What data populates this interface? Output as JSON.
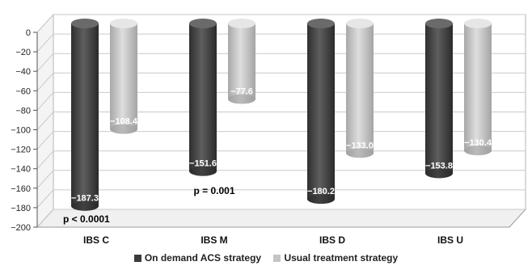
{
  "chart_data": {
    "type": "bar",
    "categories": [
      "IBS C",
      "IBS M",
      "IBS D",
      "IBS U"
    ],
    "series": [
      {
        "name": "On demand ACS strategy",
        "values": [
          -187.3,
          -151.6,
          -180.2,
          -153.8
        ],
        "color": "#4a4a4a"
      },
      {
        "name": "Usual treatment strategy",
        "values": [
          -108.4,
          -77.6,
          -133.0,
          -130.4
        ],
        "color": "#c4c4c4"
      }
    ],
    "value_labels": [
      [
        "−187.3",
        "−151.6",
        "−180.2",
        "−153.8"
      ],
      [
        "−108.4",
        "−77.6",
        "−133.0",
        "−130.4"
      ]
    ],
    "ylim": [
      -200,
      0
    ],
    "yticks": [
      0,
      -20,
      -40,
      -60,
      -80,
      -100,
      -120,
      -140,
      -160,
      -180,
      -200
    ],
    "grid": true,
    "legend_position": "bottom",
    "annotations": [
      "p < 0.0001",
      "p = 0.001"
    ]
  }
}
